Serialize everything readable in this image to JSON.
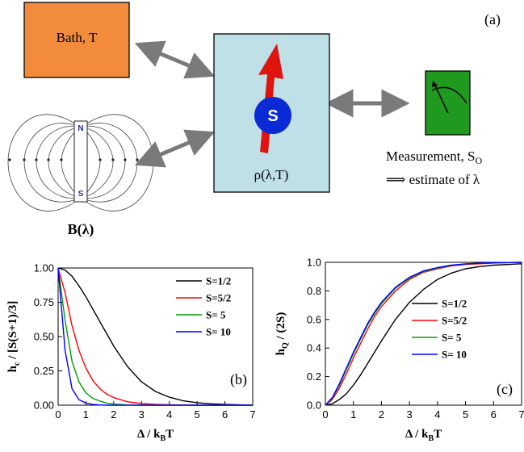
{
  "panel_a": {
    "label": "(a)",
    "bath_label": "Bath, T",
    "magnet_north": "N",
    "magnet_south": "S",
    "field_label": "B(λ)",
    "spin_label": "S",
    "state_label": "ρ(λ,T)",
    "measurement_line1": "Measurement, S",
    "measurement_sub": "O",
    "measurement_line2": "⟹ estimate of λ",
    "colors": {
      "bath": "#f28c3c",
      "state_box": "#bfe0e6",
      "spin_ball": "#0a2ad6",
      "spin_arrow": "#e0140f",
      "meter": "#1f9a1f",
      "double_arrow": "#7a7a7a"
    }
  },
  "chart_data": [
    {
      "type": "line",
      "panel": "(b)",
      "xlabel": "Δ / k",
      "xlabel_sub": "B",
      "xlabel_tail": "T",
      "ylabel": "h",
      "ylabel_sub": "c",
      "ylabel_tail": " / [S(S+1)/3]",
      "xlim": [
        0,
        7
      ],
      "ylim": [
        0,
        1
      ],
      "x_ticks": [
        "0",
        "1",
        "2",
        "3",
        "4",
        "5",
        "6",
        "7"
      ],
      "y_ticks": [
        "0.00",
        "0.25",
        "0.50",
        "0.75",
        "1.00"
      ],
      "legend_position": "top-right",
      "x": [
        0,
        0.25,
        0.5,
        0.75,
        1,
        1.25,
        1.5,
        1.75,
        2,
        2.5,
        3,
        3.5,
        4,
        4.5,
        5,
        5.5,
        6,
        7
      ],
      "series": [
        {
          "name": "S=1/2",
          "color": "#000000",
          "values": [
            1.0,
            0.985,
            0.94,
            0.87,
            0.79,
            0.7,
            0.61,
            0.52,
            0.43,
            0.28,
            0.17,
            0.1,
            0.058,
            0.032,
            0.018,
            0.01,
            0.005,
            0.0
          ]
        },
        {
          "name": "S=5/2",
          "color": "#ff0000",
          "values": [
            1.0,
            0.82,
            0.58,
            0.4,
            0.27,
            0.18,
            0.12,
            0.08,
            0.055,
            0.025,
            0.012,
            0.006,
            0.003,
            0.001,
            0.0,
            0.0,
            0.0,
            0.0
          ]
        },
        {
          "name": "S=  5",
          "color": "#00a000",
          "values": [
            1.0,
            0.62,
            0.32,
            0.17,
            0.09,
            0.05,
            0.03,
            0.015,
            0.008,
            0.002,
            0.0,
            0.0,
            0.0,
            0.0,
            0.0,
            0.0,
            0.0,
            0.0
          ]
        },
        {
          "name": "S= 10",
          "color": "#0000ff",
          "values": [
            1.0,
            0.4,
            0.12,
            0.04,
            0.015,
            0.005,
            0.002,
            0.0,
            0.0,
            0.0,
            0.0,
            0.0,
            0.0,
            0.0,
            0.0,
            0.0,
            0.0,
            0.0
          ]
        }
      ]
    },
    {
      "type": "line",
      "panel": "(c)",
      "xlabel": "Δ / k",
      "xlabel_sub": "B",
      "xlabel_tail": "T",
      "ylabel": "h",
      "ylabel_sub": "Q",
      "ylabel_tail": " / (2S)",
      "xlim": [
        0,
        7
      ],
      "ylim": [
        0,
        1
      ],
      "x_ticks": [
        "0",
        "1",
        "2",
        "3",
        "4",
        "5",
        "6",
        "7"
      ],
      "y_ticks": [
        "0.0",
        "0.2",
        "0.4",
        "0.6",
        "0.8",
        "1.0"
      ],
      "legend_position": "center-right",
      "x": [
        0,
        0.25,
        0.5,
        0.75,
        1,
        1.25,
        1.5,
        1.75,
        2,
        2.5,
        3,
        3.5,
        4,
        4.5,
        5,
        5.5,
        6,
        7
      ],
      "series": [
        {
          "name": "S=1/2",
          "color": "#000000",
          "values": [
            0.0,
            0.01,
            0.04,
            0.08,
            0.14,
            0.21,
            0.29,
            0.37,
            0.45,
            0.6,
            0.72,
            0.81,
            0.88,
            0.925,
            0.955,
            0.97,
            0.98,
            0.99
          ]
        },
        {
          "name": "S=5/2",
          "color": "#ff0000",
          "values": [
            0.0,
            0.04,
            0.12,
            0.22,
            0.33,
            0.43,
            0.53,
            0.62,
            0.69,
            0.8,
            0.88,
            0.93,
            0.955,
            0.975,
            0.985,
            0.99,
            0.995,
            1.0
          ]
        },
        {
          "name": "S=   5",
          "color": "#00a000",
          "values": [
            0.0,
            0.05,
            0.14,
            0.25,
            0.36,
            0.46,
            0.56,
            0.64,
            0.71,
            0.82,
            0.89,
            0.935,
            0.96,
            0.978,
            0.988,
            0.993,
            0.996,
            1.0
          ]
        },
        {
          "name": "S= 10",
          "color": "#0000ff",
          "values": [
            0.0,
            0.055,
            0.15,
            0.26,
            0.37,
            0.47,
            0.57,
            0.65,
            0.72,
            0.825,
            0.895,
            0.94,
            0.963,
            0.98,
            0.989,
            0.994,
            0.997,
            1.0
          ]
        }
      ]
    }
  ]
}
